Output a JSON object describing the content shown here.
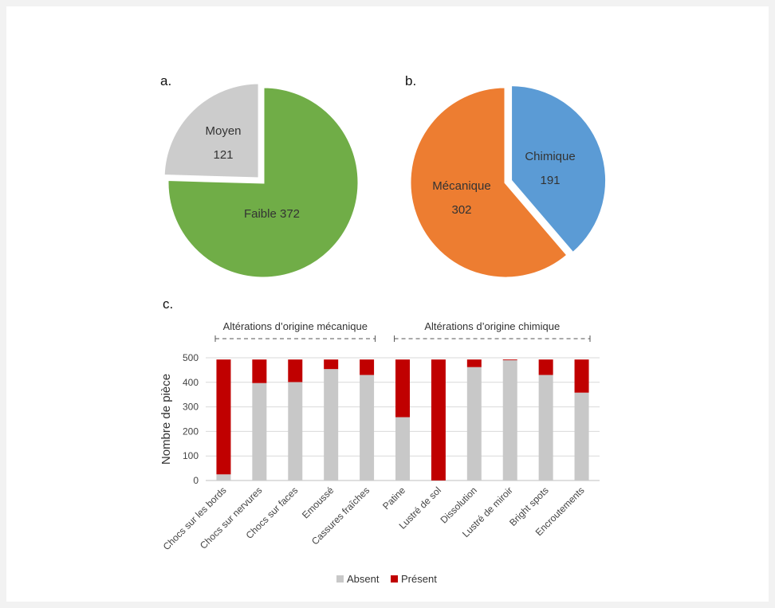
{
  "chart_data": [
    {
      "panel": "a.",
      "type": "pie",
      "slices": [
        {
          "label": "Faible",
          "value": 372,
          "color": "#70ad47"
        },
        {
          "label": "Moyen",
          "value": 121,
          "color": "#cccccc"
        }
      ]
    },
    {
      "panel": "b.",
      "type": "pie",
      "slices": [
        {
          "label": "Chimique",
          "value": 191,
          "color": "#5b9bd5"
        },
        {
          "label": "Mécanique",
          "value": 302,
          "color": "#ed7d31"
        }
      ]
    },
    {
      "panel": "c.",
      "type": "bar",
      "stacked": true,
      "ylabel": "Nombre de pièce",
      "ylim": [
        0,
        500
      ],
      "yticks": [
        "0",
        "100",
        "200",
        "300",
        "400",
        "500"
      ],
      "groups": [
        {
          "label": "Altérations d’origine mécanique",
          "start": 0,
          "end": 4
        },
        {
          "label": "Altérations d’origine chimique",
          "start": 5,
          "end": 10
        }
      ],
      "categories": [
        "Chocs sur les bords",
        "Chocs sur nervures",
        "Chocs sur faces",
        "Emoussé",
        "Cassures fraîches",
        "Patine",
        "Lustré de sol",
        "Dissolution",
        "Lustré de miroir",
        "Bright spots",
        "Encroutements"
      ],
      "series": [
        {
          "name": "Absent",
          "color": "#c8c8c8",
          "values": [
            25,
            397,
            401,
            454,
            430,
            258,
            0,
            462,
            490,
            430,
            358
          ]
        },
        {
          "name": "Présent",
          "color": "#c00000",
          "values": [
            468,
            96,
            92,
            39,
            63,
            235,
            493,
            31,
            3,
            63,
            135
          ]
        }
      ],
      "legend_position": "bottom"
    }
  ]
}
